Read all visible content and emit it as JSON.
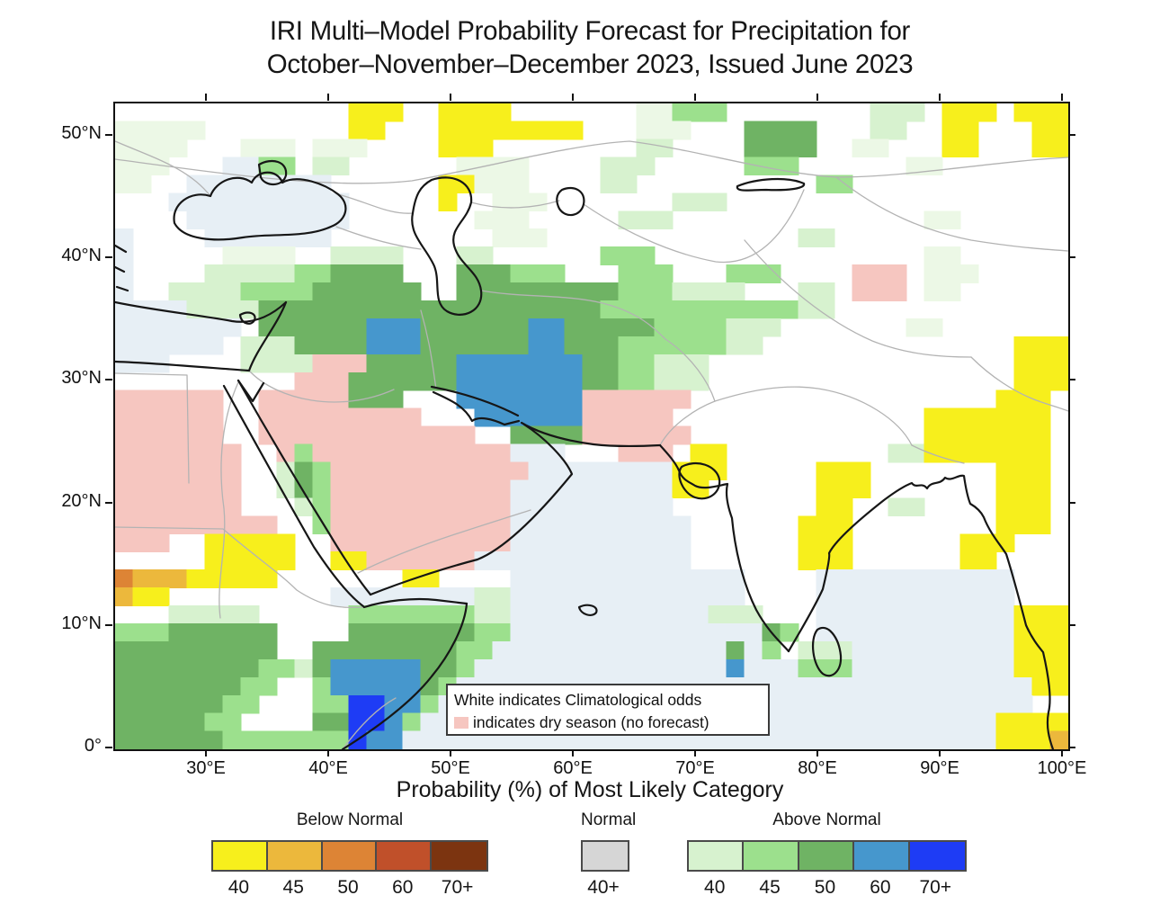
{
  "title": {
    "line1": "IRI Multi–Model Probability Forecast for Precipitation for",
    "line2": "October–November–December 2023, Issued June 2023"
  },
  "axes": {
    "lat_labels": [
      "50°N",
      "40°N",
      "30°N",
      "20°N",
      "10°N",
      "0°"
    ],
    "lon_labels": [
      "30°E",
      "40°E",
      "50°E",
      "60°E",
      "70°E",
      "80°E",
      "90°E",
      "100°E"
    ]
  },
  "note": {
    "line1": "White indicates Climatological odds",
    "line2": "indicates dry season (no forecast)",
    "swatch_color": "#f6c6c0"
  },
  "legend": {
    "title": "Probability (%) of Most Likely Category",
    "sections": [
      {
        "label": "Below Normal",
        "values": [
          "40",
          "45",
          "50",
          "60",
          "70+"
        ],
        "colors": [
          "#f7ef1c",
          "#ecb83c",
          "#dd8435",
          "#c0502a",
          "#7c3410"
        ]
      },
      {
        "label": "Normal",
        "values": [
          "40+"
        ],
        "colors": [
          "#d6d6d6"
        ]
      },
      {
        "label": "Above Normal",
        "values": [
          "40",
          "45",
          "50",
          "60",
          "70+"
        ],
        "colors": [
          "#d7f2cf",
          "#9ce08d",
          "#6fb364",
          "#4697cd",
          "#1e3cf5"
        ]
      }
    ]
  },
  "map_grid": {
    "legend_meaning": {
      "w": "water",
      "p": "dry season (no forecast)",
      "g": "pale green",
      "a": "above 40",
      "b": "above 45",
      "c": "above 50",
      "d": "above 60",
      "e": "above 70+",
      "y": "below 40",
      "o": "below 45",
      "r": "below 50"
    },
    "palette": {
      ".": "",
      "w": "#e7eff5",
      "p": "#f6c6c0",
      "g": "#ecf8e6",
      "a": "#d7f2cf",
      "b": "#9ce08d",
      "c": "#6fb364",
      "d": "#4697cd",
      "e": "#1e3cf5",
      "y": "#f7ef1c",
      "o": "#ecb83c",
      "r": "#dd8435"
    },
    "rows": [
      ".............yyy..yyyy.......ggbbb........aaa.yyy.yyy",
      "ggggg........yy...yyyyyyyy...ggg...cccc...aa..yy...yy",
      "gggg...ggg.ggg....yyy........aa....cccc..gg...yy...yy",
      "ggg...wwbb.aa......gggg....aaa.....bbb......gg.......",
      "gg..wwwwwwww......yyggg....aa..........bb............",
      "...wwwwwwwwww.....y..ggg.......aaa...................",
      "....wwwwwwwww.......ggg.....aaa..............gg......",
      "w....wwwwwww.........ggg..............aa.............",
      "w.....gggg..aaaa...aa......bbb...............gg......",
      "w....aaaaabbcccc...cccbbb...bbb...bbb....ppp.ggg.....",
      "w..aaaabbbbcccccc..cccccccccbbbaaaa...aa.ppp.gg......",
      "wwwwaaaacccccccccccccccccccbbbbbbbbbbbaa.............",
      "wwwwwww.ccccccdddccccccddcccccbbbbaaa.......gg.......",
      "wwwwww.aaaccccdddccccccddcccbbbbbbaa..............yyy",
      "www....aaaapppcccccdddddddccbbaaa.................yyy",
      "..........pppccccccdddddddccbbaaa.................yyy",
      "pppppp..pppppccc...dddddddpppppp.................yyy.",
      "pppppp..ppppppppp...ddddddppppp..............yyyyyyy.",
      "pppppp..pppppppppppp..ccccpppppp.............yyyyyyy.",
      "ppppppp..pbpppppppppppwww...ppp.yy.........aayyyyyyy.",
      "ppppppp..acbpppppppppppwwwwwwwwyyy.....yyy.......yyy.",
      "ppppppp..acbppppppppppwwwwwwwwwyy......yyy.......yyy.",
      "ppppppp...abppppppppppwwwwwwwww........yy..aa....yyy.",
      "ppppppppp..bppppppppppwwwwwwwwww......yyy........yyy.",
      "ppp..yyyyy..ppppppppppwwwwwwwwww......yyy......yyy...",
      ".....yyyyy..yyppppppwwwwwwwwwwww......yyy......yy....",
      "roooyyyyy.......yy....wwwwwwwwwwwww....wwwwwwwwwww...",
      "oyy.........wwwwwwwwaawwwwwwwwwwwww....wwwwwwwwwww...",
      "...aaaaa.....bbbbbbbaawwwwwwwwwwwaaa...wwwwwwwwwwwyyy",
      "bbbcccccc....cccccccbbwwwwwwwwwwwwwwcb.wwwwwwwwwwwyyy",
      "ccccccccc..ccccccccbbwwwwwwwwwwwwwcwb.aaawwwwwwwwwyyy",
      "ccccccccbbacdddddccbwwwwwwwwwwwwwwdwwwbbbwwwwwwwwwyyy",
      "cccccccbb..bdddddcbwwwwwwwwwwwwwwwwwwwwwwwwwwwwwwwwyy",
      "ccccccbb...bbeeddbwwwwwwwwwwwwwwwwwwwwwwwwwwwwwwwww..",
      "cccccbb....cceedbwwwwwwwwwwwwwwwwwwwwwwwwwwwwwwwwyyyy",
      "ccccccbbbbbbbeddwwwwwwwwwwwwwwwwwwwwwwwwwwwwwwwwwyyyo"
    ]
  }
}
